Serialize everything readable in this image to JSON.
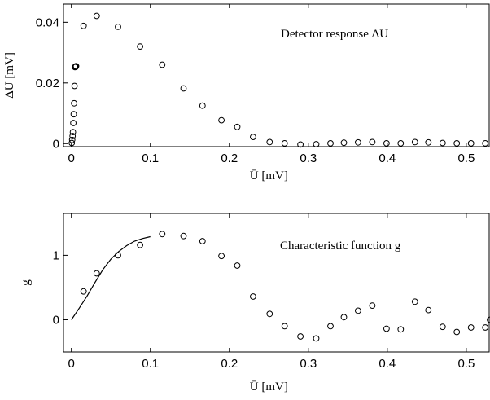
{
  "chart_data": [
    {
      "type": "scatter",
      "annotation": "Detector response  ΔU",
      "xlabel": "Ū [mV]",
      "ylabel": "ΔU [mV]",
      "xlim": [
        -0.01,
        0.53
      ],
      "ylim": [
        -0.001,
        0.046
      ],
      "xticks": [
        0,
        0.1,
        0.2,
        0.3,
        0.4,
        0.5
      ],
      "xtick_labels": [
        "0",
        "0.1",
        "0.2",
        "0.3",
        "0.4",
        "0.5"
      ],
      "yticks": [
        0,
        0.02,
        0.04
      ],
      "ytick_labels": [
        "0",
        "0.02",
        "0.04"
      ],
      "marker": "open-circle",
      "series": [
        {
          "x": [
            0.0005,
            0.001,
            0.0015,
            0.002,
            0.0025,
            0.003,
            0.0035,
            0.004,
            0.0045,
            0.005,
            0.0055,
            0.006,
            0.0155,
            0.032,
            0.059,
            0.087,
            0.115,
            0.142,
            0.166,
            0.19,
            0.21,
            0.23,
            0.251,
            0.27,
            0.29,
            0.31,
            0.328,
            0.345,
            0.363,
            0.381,
            0.399,
            0.417,
            0.435,
            0.452,
            0.47,
            0.488,
            0.506,
            0.524
          ],
          "y": [
            0.0002,
            0.0012,
            0.0025,
            0.0038,
            0.0068,
            0.0097,
            0.0133,
            0.019,
            0.0252,
            0.0254,
            0.0253,
            0.0255,
            0.0388,
            0.0421,
            0.0385,
            0.032,
            0.026,
            0.0182,
            0.0125,
            0.0077,
            0.0055,
            0.0022,
            0.0005,
            0.0001,
            -0.0003,
            -0.0002,
            0.0001,
            0.0003,
            0.0004,
            0.0005,
            0.0001,
            0.0001,
            0.0005,
            0.0004,
            0.0002,
            0.0001,
            0.0001,
            0.0001
          ]
        }
      ]
    },
    {
      "type": "scatter",
      "annotation": "Characteristic function g",
      "xlabel": "Ū [mV]",
      "ylabel": "g",
      "xlim": [
        -0.01,
        0.53
      ],
      "ylim": [
        -0.5,
        1.65
      ],
      "xticks": [
        0,
        0.1,
        0.2,
        0.3,
        0.4,
        0.5
      ],
      "xtick_labels": [
        "0",
        "0.1",
        "0.2",
        "0.3",
        "0.4",
        "0.5"
      ],
      "yticks": [
        0,
        1
      ],
      "ytick_labels": [
        "0",
        "1"
      ],
      "marker": "open-circle",
      "series": [
        {
          "x": [
            0.0155,
            0.032,
            0.059,
            0.087,
            0.115,
            0.142,
            0.166,
            0.19,
            0.21,
            0.23,
            0.251,
            0.27,
            0.29,
            0.31,
            0.328,
            0.345,
            0.363,
            0.381,
            0.399,
            0.417,
            0.435,
            0.452,
            0.47,
            0.488,
            0.506,
            0.524,
            0.53
          ],
          "y": [
            0.44,
            0.72,
            1.0,
            1.16,
            1.33,
            1.3,
            1.22,
            0.99,
            0.84,
            0.36,
            0.09,
            -0.1,
            -0.26,
            -0.29,
            -0.1,
            0.04,
            0.14,
            0.22,
            -0.14,
            -0.15,
            0.28,
            0.15,
            -0.11,
            -0.19,
            -0.12,
            -0.12,
            0.0
          ]
        }
      ],
      "line": {
        "x": [
          0,
          0.01,
          0.02,
          0.03,
          0.04,
          0.05,
          0.06,
          0.07,
          0.08,
          0.09,
          0.1
        ],
        "y": [
          0.0,
          0.18,
          0.37,
          0.58,
          0.78,
          0.94,
          1.06,
          1.15,
          1.22,
          1.26,
          1.29
        ]
      }
    }
  ]
}
